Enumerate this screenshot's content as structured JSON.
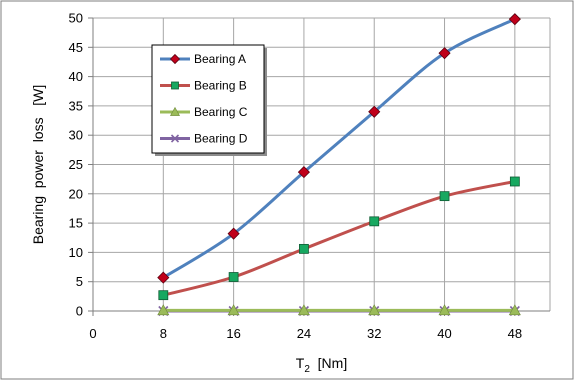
{
  "chart_data": {
    "type": "line",
    "title": "",
    "xlabel": "T",
    "xlabel_sub": "2",
    "xlabel_unit": "[Nm]",
    "ylabel": "Bearing  power  loss   [W]",
    "x_ticks": [
      0,
      8,
      16,
      24,
      32,
      40,
      48
    ],
    "y_ticks": [
      0,
      5,
      10,
      15,
      20,
      25,
      30,
      35,
      40,
      45,
      50
    ],
    "xlim": [
      0,
      52
    ],
    "ylim": [
      0,
      50
    ],
    "grid": true,
    "legend_position": "top-left",
    "x": [
      8,
      16,
      24,
      32,
      40,
      48
    ],
    "series": [
      {
        "name": "Bearing A",
        "values": [
          5.7,
          13.2,
          23.7,
          34.0,
          44.0,
          49.8
        ],
        "color": "#4f81bd",
        "marker": "diamond",
        "marker_color": "#c0001a"
      },
      {
        "name": "Bearing B",
        "values": [
          2.7,
          5.8,
          10.6,
          15.3,
          19.6,
          22.1
        ],
        "color": "#c0504d",
        "marker": "square",
        "marker_color": "#17a860"
      },
      {
        "name": "Bearing C",
        "values": [
          0.1,
          0.1,
          0.1,
          0.1,
          0.1,
          0.1
        ],
        "color": "#9bbb59",
        "marker": "triangle",
        "marker_color": "#9bbb59"
      },
      {
        "name": "Bearing D",
        "values": [
          0.0,
          0.0,
          0.0,
          0.0,
          0.0,
          0.0
        ],
        "color": "#8064a2",
        "marker": "x",
        "marker_color": "#8064a2"
      }
    ]
  }
}
